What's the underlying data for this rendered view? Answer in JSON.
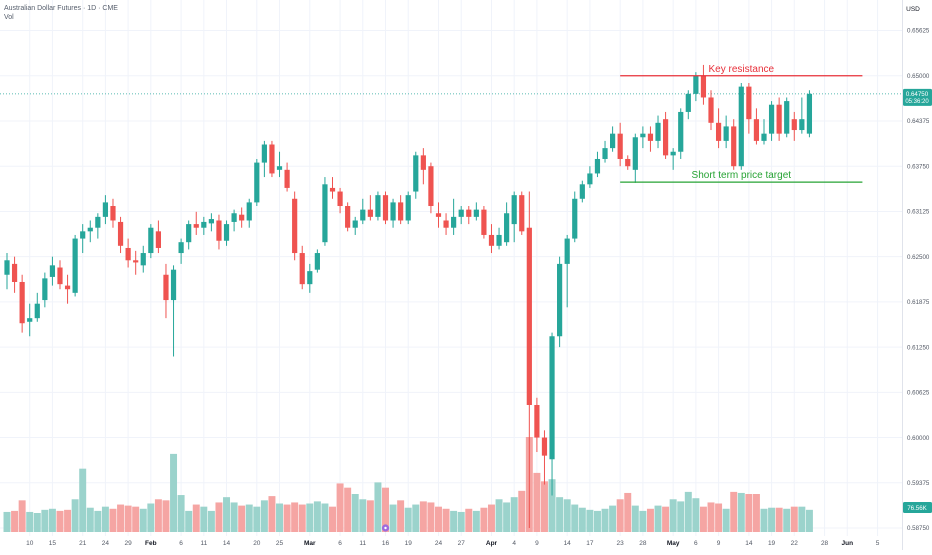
{
  "header": {
    "instrument": "Australian Dollar Futures · 1D · CME",
    "volume_label": "Vol"
  },
  "price_axis": {
    "currency": "USD",
    "current_price": "0.64750",
    "countdown": "05:36:20",
    "volume_value": "76.56K"
  },
  "annotations": {
    "resistance_label": "Key resistance",
    "target_label": "Short term price target"
  },
  "colors": {
    "up": "#26a69a",
    "down": "#ef5350",
    "up_volume": "#9bd3cc",
    "down_volume": "#f5a5a3",
    "resistance": "#e8303a",
    "target": "#27a334",
    "grid": "#f0f3fa",
    "axis_text": "#535965",
    "event_marker": "#9c6ade"
  },
  "chart_data": {
    "type": "candlestick",
    "y_range": [
      0.5875,
      0.6575
    ],
    "y_ticks": [
      "0.65625",
      "0.65000",
      "0.64375",
      "0.63750",
      "0.63125",
      "0.62500",
      "0.61875",
      "0.61250",
      "0.60625",
      "0.60000",
      "0.59375",
      "0.58750"
    ],
    "x_ticks": [
      {
        "label": "10",
        "bar": 3
      },
      {
        "label": "15",
        "bar": 6
      },
      {
        "label": "21",
        "bar": 10
      },
      {
        "label": "24",
        "bar": 13
      },
      {
        "label": "29",
        "bar": 16
      },
      {
        "label": "Feb",
        "bar": 19
      },
      {
        "label": "6",
        "bar": 23
      },
      {
        "label": "11",
        "bar": 26
      },
      {
        "label": "14",
        "bar": 29
      },
      {
        "label": "20",
        "bar": 33
      },
      {
        "label": "25",
        "bar": 36
      },
      {
        "label": "Mar",
        "bar": 40
      },
      {
        "label": "6",
        "bar": 44
      },
      {
        "label": "11",
        "bar": 47
      },
      {
        "label": "16",
        "bar": 50
      },
      {
        "label": "19",
        "bar": 53
      },
      {
        "label": "24",
        "bar": 57
      },
      {
        "label": "27",
        "bar": 60
      },
      {
        "label": "Apr",
        "bar": 64
      },
      {
        "label": "4",
        "bar": 67
      },
      {
        "label": "9",
        "bar": 70
      },
      {
        "label": "14",
        "bar": 74
      },
      {
        "label": "17",
        "bar": 77
      },
      {
        "label": "23",
        "bar": 81
      },
      {
        "label": "28",
        "bar": 84
      },
      {
        "label": "May",
        "bar": 88
      },
      {
        "label": "6",
        "bar": 91
      },
      {
        "label": "9",
        "bar": 94
      },
      {
        "label": "14",
        "bar": 98
      },
      {
        "label": "19",
        "bar": 101
      },
      {
        "label": "22",
        "bar": 104
      },
      {
        "label": "28",
        "bar": 108
      },
      {
        "label": "Jun",
        "bar": 111
      },
      {
        "label": "5",
        "bar": 115
      }
    ],
    "resistance_level": 0.65,
    "target_level": 0.6353,
    "annotation_span": {
      "start_bar": 81,
      "end_bar": 113
    },
    "event_marker_bar": 50,
    "volume_max": 180,
    "candles": [
      {
        "o": 0.6225,
        "h": 0.6255,
        "l": 0.6205,
        "c": 0.6245,
        "v": 38
      },
      {
        "o": 0.624,
        "h": 0.625,
        "l": 0.62,
        "c": 0.6215,
        "v": 40
      },
      {
        "o": 0.6215,
        "h": 0.6225,
        "l": 0.6145,
        "c": 0.6158,
        "v": 60
      },
      {
        "o": 0.616,
        "h": 0.6185,
        "l": 0.614,
        "c": 0.6165,
        "v": 38
      },
      {
        "o": 0.6165,
        "h": 0.62,
        "l": 0.616,
        "c": 0.6185,
        "v": 36
      },
      {
        "o": 0.619,
        "h": 0.6228,
        "l": 0.618,
        "c": 0.622,
        "v": 42
      },
      {
        "o": 0.6222,
        "h": 0.625,
        "l": 0.621,
        "c": 0.6238,
        "v": 44
      },
      {
        "o": 0.6235,
        "h": 0.6245,
        "l": 0.6205,
        "c": 0.6212,
        "v": 40
      },
      {
        "o": 0.621,
        "h": 0.6225,
        "l": 0.6185,
        "c": 0.6205,
        "v": 42
      },
      {
        "o": 0.62,
        "h": 0.628,
        "l": 0.6195,
        "c": 0.6275,
        "v": 62
      },
      {
        "o": 0.6275,
        "h": 0.6295,
        "l": 0.6255,
        "c": 0.6285,
        "v": 120
      },
      {
        "o": 0.6285,
        "h": 0.63,
        "l": 0.627,
        "c": 0.629,
        "v": 46
      },
      {
        "o": 0.629,
        "h": 0.631,
        "l": 0.6275,
        "c": 0.6305,
        "v": 40
      },
      {
        "o": 0.6305,
        "h": 0.6335,
        "l": 0.6295,
        "c": 0.6325,
        "v": 48
      },
      {
        "o": 0.632,
        "h": 0.633,
        "l": 0.629,
        "c": 0.63,
        "v": 44
      },
      {
        "o": 0.6298,
        "h": 0.6305,
        "l": 0.6255,
        "c": 0.6265,
        "v": 52
      },
      {
        "o": 0.6262,
        "h": 0.6275,
        "l": 0.6235,
        "c": 0.6245,
        "v": 50
      },
      {
        "o": 0.6245,
        "h": 0.6258,
        "l": 0.6225,
        "c": 0.6242,
        "v": 48
      },
      {
        "o": 0.6238,
        "h": 0.6265,
        "l": 0.6228,
        "c": 0.6255,
        "v": 44
      },
      {
        "o": 0.6255,
        "h": 0.6295,
        "l": 0.6248,
        "c": 0.629,
        "v": 54
      },
      {
        "o": 0.6285,
        "h": 0.63,
        "l": 0.6255,
        "c": 0.6262,
        "v": 62
      },
      {
        "o": 0.6225,
        "h": 0.624,
        "l": 0.6165,
        "c": 0.619,
        "v": 60
      },
      {
        "o": 0.619,
        "h": 0.6238,
        "l": 0.6112,
        "c": 0.6232,
        "v": 148
      },
      {
        "o": 0.6255,
        "h": 0.6275,
        "l": 0.624,
        "c": 0.627,
        "v": 70
      },
      {
        "o": 0.627,
        "h": 0.63,
        "l": 0.626,
        "c": 0.6295,
        "v": 40
      },
      {
        "o": 0.6295,
        "h": 0.6312,
        "l": 0.628,
        "c": 0.629,
        "v": 52
      },
      {
        "o": 0.629,
        "h": 0.6305,
        "l": 0.628,
        "c": 0.6298,
        "v": 48
      },
      {
        "o": 0.6296,
        "h": 0.631,
        "l": 0.6285,
        "c": 0.6302,
        "v": 40
      },
      {
        "o": 0.63,
        "h": 0.6308,
        "l": 0.626,
        "c": 0.6272,
        "v": 56
      },
      {
        "o": 0.6272,
        "h": 0.63,
        "l": 0.6265,
        "c": 0.6295,
        "v": 66
      },
      {
        "o": 0.6298,
        "h": 0.6315,
        "l": 0.6285,
        "c": 0.631,
        "v": 56
      },
      {
        "o": 0.6308,
        "h": 0.6318,
        "l": 0.629,
        "c": 0.63,
        "v": 50
      },
      {
        "o": 0.63,
        "h": 0.633,
        "l": 0.629,
        "c": 0.6325,
        "v": 52
      },
      {
        "o": 0.6325,
        "h": 0.6385,
        "l": 0.632,
        "c": 0.638,
        "v": 48
      },
      {
        "o": 0.638,
        "h": 0.641,
        "l": 0.636,
        "c": 0.6405,
        "v": 60
      },
      {
        "o": 0.6405,
        "h": 0.641,
        "l": 0.636,
        "c": 0.6365,
        "v": 68
      },
      {
        "o": 0.637,
        "h": 0.6395,
        "l": 0.636,
        "c": 0.6375,
        "v": 54
      },
      {
        "o": 0.637,
        "h": 0.638,
        "l": 0.634,
        "c": 0.6345,
        "v": 52
      },
      {
        "o": 0.633,
        "h": 0.634,
        "l": 0.6245,
        "c": 0.6255,
        "v": 56
      },
      {
        "o": 0.6255,
        "h": 0.6265,
        "l": 0.6205,
        "c": 0.6212,
        "v": 52
      },
      {
        "o": 0.6212,
        "h": 0.624,
        "l": 0.62,
        "c": 0.623,
        "v": 54
      },
      {
        "o": 0.6232,
        "h": 0.626,
        "l": 0.6228,
        "c": 0.6255,
        "v": 58
      },
      {
        "o": 0.627,
        "h": 0.636,
        "l": 0.6265,
        "c": 0.635,
        "v": 54
      },
      {
        "o": 0.6345,
        "h": 0.636,
        "l": 0.633,
        "c": 0.634,
        "v": 48
      },
      {
        "o": 0.634,
        "h": 0.6345,
        "l": 0.631,
        "c": 0.632,
        "v": 92
      },
      {
        "o": 0.632,
        "h": 0.6325,
        "l": 0.6285,
        "c": 0.629,
        "v": 84
      },
      {
        "o": 0.629,
        "h": 0.6305,
        "l": 0.628,
        "c": 0.63,
        "v": 72
      },
      {
        "o": 0.63,
        "h": 0.633,
        "l": 0.6295,
        "c": 0.6315,
        "v": 62
      },
      {
        "o": 0.6315,
        "h": 0.6335,
        "l": 0.63,
        "c": 0.6305,
        "v": 60
      },
      {
        "o": 0.6305,
        "h": 0.634,
        "l": 0.63,
        "c": 0.6335,
        "v": 94
      },
      {
        "o": 0.6335,
        "h": 0.634,
        "l": 0.6295,
        "c": 0.63,
        "v": 84
      },
      {
        "o": 0.63,
        "h": 0.633,
        "l": 0.629,
        "c": 0.6325,
        "v": 52
      },
      {
        "o": 0.6325,
        "h": 0.6335,
        "l": 0.6295,
        "c": 0.63,
        "v": 60
      },
      {
        "o": 0.63,
        "h": 0.634,
        "l": 0.6295,
        "c": 0.6335,
        "v": 46
      },
      {
        "o": 0.634,
        "h": 0.6395,
        "l": 0.633,
        "c": 0.639,
        "v": 52
      },
      {
        "o": 0.639,
        "h": 0.64,
        "l": 0.635,
        "c": 0.637,
        "v": 58
      },
      {
        "o": 0.6375,
        "h": 0.638,
        "l": 0.631,
        "c": 0.632,
        "v": 56
      },
      {
        "o": 0.631,
        "h": 0.6325,
        "l": 0.629,
        "c": 0.6305,
        "v": 48
      },
      {
        "o": 0.63,
        "h": 0.631,
        "l": 0.628,
        "c": 0.629,
        "v": 44
      },
      {
        "o": 0.629,
        "h": 0.633,
        "l": 0.628,
        "c": 0.6305,
        "v": 40
      },
      {
        "o": 0.6305,
        "h": 0.632,
        "l": 0.6295,
        "c": 0.6315,
        "v": 38
      },
      {
        "o": 0.6315,
        "h": 0.632,
        "l": 0.6295,
        "c": 0.6305,
        "v": 44
      },
      {
        "o": 0.6305,
        "h": 0.6325,
        "l": 0.63,
        "c": 0.6315,
        "v": 40
      },
      {
        "o": 0.6315,
        "h": 0.632,
        "l": 0.6275,
        "c": 0.628,
        "v": 46
      },
      {
        "o": 0.628,
        "h": 0.6295,
        "l": 0.6255,
        "c": 0.6265,
        "v": 52
      },
      {
        "o": 0.6265,
        "h": 0.629,
        "l": 0.626,
        "c": 0.628,
        "v": 62
      },
      {
        "o": 0.627,
        "h": 0.6325,
        "l": 0.6265,
        "c": 0.631,
        "v": 56
      },
      {
        "o": 0.6295,
        "h": 0.634,
        "l": 0.627,
        "c": 0.6335,
        "v": 66
      },
      {
        "o": 0.6335,
        "h": 0.634,
        "l": 0.628,
        "c": 0.6285,
        "v": 78
      },
      {
        "o": 0.629,
        "h": 0.634,
        "l": 0.5875,
        "c": 0.6045,
        "v": 180
      },
      {
        "o": 0.6045,
        "h": 0.6055,
        "l": 0.598,
        "c": 0.6,
        "v": 112
      },
      {
        "o": 0.6,
        "h": 0.601,
        "l": 0.5935,
        "c": 0.5975,
        "v": 96
      },
      {
        "o": 0.597,
        "h": 0.6145,
        "l": 0.592,
        "c": 0.614,
        "v": 100
      },
      {
        "o": 0.614,
        "h": 0.625,
        "l": 0.6125,
        "c": 0.624,
        "v": 66
      },
      {
        "o": 0.624,
        "h": 0.628,
        "l": 0.618,
        "c": 0.6275,
        "v": 62
      },
      {
        "o": 0.6275,
        "h": 0.634,
        "l": 0.627,
        "c": 0.633,
        "v": 52
      },
      {
        "o": 0.633,
        "h": 0.6355,
        "l": 0.6325,
        "c": 0.635,
        "v": 46
      },
      {
        "o": 0.635,
        "h": 0.6375,
        "l": 0.6345,
        "c": 0.6365,
        "v": 42
      },
      {
        "o": 0.6365,
        "h": 0.6395,
        "l": 0.636,
        "c": 0.6385,
        "v": 40
      },
      {
        "o": 0.6385,
        "h": 0.641,
        "l": 0.638,
        "c": 0.64,
        "v": 44
      },
      {
        "o": 0.64,
        "h": 0.643,
        "l": 0.6395,
        "c": 0.642,
        "v": 50
      },
      {
        "o": 0.642,
        "h": 0.6435,
        "l": 0.6375,
        "c": 0.6385,
        "v": 62
      },
      {
        "o": 0.6385,
        "h": 0.639,
        "l": 0.637,
        "c": 0.6375,
        "v": 74
      },
      {
        "o": 0.637,
        "h": 0.642,
        "l": 0.6352,
        "c": 0.6415,
        "v": 50
      },
      {
        "o": 0.6415,
        "h": 0.643,
        "l": 0.64,
        "c": 0.642,
        "v": 40
      },
      {
        "o": 0.642,
        "h": 0.643,
        "l": 0.6395,
        "c": 0.641,
        "v": 44
      },
      {
        "o": 0.641,
        "h": 0.6445,
        "l": 0.64,
        "c": 0.6435,
        "v": 50
      },
      {
        "o": 0.644,
        "h": 0.645,
        "l": 0.6385,
        "c": 0.639,
        "v": 48
      },
      {
        "o": 0.639,
        "h": 0.64,
        "l": 0.637,
        "c": 0.6395,
        "v": 62
      },
      {
        "o": 0.6395,
        "h": 0.6455,
        "l": 0.6385,
        "c": 0.645,
        "v": 58
      },
      {
        "o": 0.645,
        "h": 0.648,
        "l": 0.644,
        "c": 0.6475,
        "v": 76
      },
      {
        "o": 0.6475,
        "h": 0.6505,
        "l": 0.6465,
        "c": 0.65,
        "v": 64
      },
      {
        "o": 0.65,
        "h": 0.6515,
        "l": 0.646,
        "c": 0.647,
        "v": 48
      },
      {
        "o": 0.647,
        "h": 0.648,
        "l": 0.6425,
        "c": 0.6435,
        "v": 56
      },
      {
        "o": 0.6435,
        "h": 0.6455,
        "l": 0.64,
        "c": 0.641,
        "v": 54
      },
      {
        "o": 0.641,
        "h": 0.6445,
        "l": 0.64,
        "c": 0.643,
        "v": 44
      },
      {
        "o": 0.643,
        "h": 0.644,
        "l": 0.637,
        "c": 0.6375,
        "v": 76
      },
      {
        "o": 0.6375,
        "h": 0.649,
        "l": 0.637,
        "c": 0.6485,
        "v": 74
      },
      {
        "o": 0.6485,
        "h": 0.649,
        "l": 0.642,
        "c": 0.644,
        "v": 72
      },
      {
        "o": 0.644,
        "h": 0.6455,
        "l": 0.6405,
        "c": 0.641,
        "v": 72
      },
      {
        "o": 0.641,
        "h": 0.644,
        "l": 0.6405,
        "c": 0.642,
        "v": 44
      },
      {
        "o": 0.642,
        "h": 0.6465,
        "l": 0.641,
        "c": 0.646,
        "v": 46
      },
      {
        "o": 0.646,
        "h": 0.647,
        "l": 0.641,
        "c": 0.642,
        "v": 46
      },
      {
        "o": 0.642,
        "h": 0.647,
        "l": 0.6415,
        "c": 0.6465,
        "v": 44
      },
      {
        "o": 0.644,
        "h": 0.645,
        "l": 0.641,
        "c": 0.6425,
        "v": 48
      },
      {
        "o": 0.6425,
        "h": 0.647,
        "l": 0.642,
        "c": 0.644,
        "v": 48
      },
      {
        "o": 0.642,
        "h": 0.648,
        "l": 0.6415,
        "c": 0.6475,
        "v": 42
      }
    ]
  }
}
